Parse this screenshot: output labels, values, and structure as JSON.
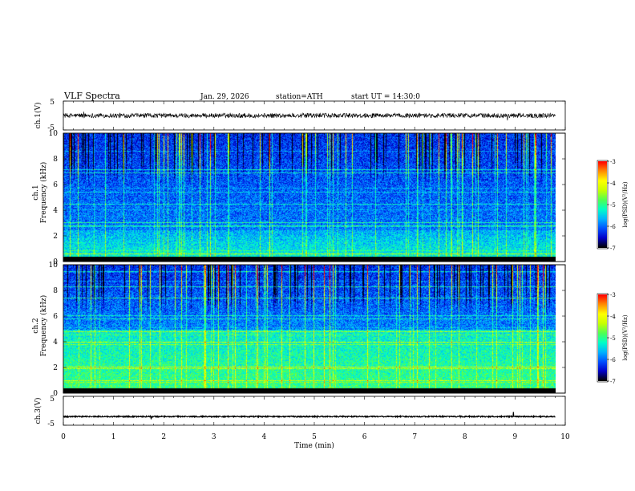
{
  "header": {
    "title": "VLF Spectra",
    "date": "Jan. 29, 2026",
    "station": "station=ATH",
    "start": "start UT =  14:30:0"
  },
  "chart_data": [
    {
      "type": "line",
      "name": "ch1-waveform",
      "ylabel": "ch.1(V)",
      "ylim": [
        -5,
        5
      ],
      "yticks": [
        "5",
        "-5"
      ],
      "x_range": [
        0,
        10
      ],
      "data_end_min": 9.8,
      "baseline_V": 0.0,
      "noise_V": 0.8
    },
    {
      "type": "heatmap",
      "name": "ch1-spectrogram",
      "ylabel": "ch.1\nFrequency (kHz)",
      "ylim": [
        0,
        10
      ],
      "yticks": [
        "0",
        "2",
        "4",
        "6",
        "8",
        "10"
      ],
      "x_range": [
        0,
        9.8
      ],
      "colorbar": {
        "label": "log(PSD)(V²/Hz)",
        "range": [
          -7,
          -3
        ],
        "ticks": [
          "-3",
          "-4",
          "-5",
          "-6",
          "-7"
        ]
      }
    },
    {
      "type": "heatmap",
      "name": "ch2-spectrogram",
      "ylabel": "ch.2\nFrequency (kHz)",
      "ylim": [
        0,
        10
      ],
      "yticks": [
        "0",
        "2",
        "4",
        "6",
        "8",
        "10"
      ],
      "x_range": [
        0,
        9.8
      ],
      "colorbar": {
        "label": "log(PSD)(V²/Hz)",
        "range": [
          -7,
          -3
        ],
        "ticks": [
          "-3",
          "-4",
          "-5",
          "-6",
          "-7"
        ]
      }
    },
    {
      "type": "line",
      "name": "ch3-waveform",
      "ylabel": "ch.3(V)",
      "ylim": [
        -5,
        5
      ],
      "yticks": [
        "5",
        "-5"
      ],
      "x_range": [
        0,
        10
      ],
      "data_end_min": 9.8,
      "baseline_V": -2.0,
      "noise_V": 0.2
    }
  ],
  "xaxis": {
    "label": "Time (min)",
    "ticks": [
      "0",
      "1",
      "2",
      "3",
      "4",
      "5",
      "6",
      "7",
      "8",
      "9",
      "10"
    ]
  },
  "colors": {
    "colormap": [
      "#000000",
      "#0000c8",
      "#0050ff",
      "#00b4ff",
      "#00ffc8",
      "#50ff50",
      "#c8ff00",
      "#ffff00",
      "#ff8c00",
      "#ff0000",
      "#ffffff"
    ]
  }
}
